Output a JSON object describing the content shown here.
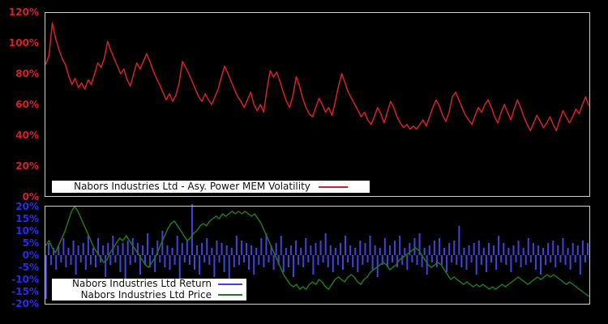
{
  "figure": {
    "background": "#000000",
    "frame_color": "#d0d0d0"
  },
  "chart_data": [
    {
      "type": "line",
      "panel": "top",
      "title": "Nabors Industries Ltd - Asy. Power MEM Volatility",
      "xlabel": "",
      "ylabel": "",
      "ylim": [
        0,
        120
      ],
      "yticks": [
        0,
        20,
        40,
        60,
        80,
        100,
        120
      ],
      "ytick_suffix": "%",
      "xticks_visible": false,
      "grid": false,
      "axis_label_color": "#d62128",
      "legend_position": "bottom-center-inside",
      "series": [
        {
          "name": "Nabors Industries Ltd - Asy. Power MEM Volatility",
          "type": "line",
          "color": "#d62128",
          "values": [
            86,
            92,
            113,
            103,
            96,
            90,
            86,
            79,
            73,
            77,
            71,
            74,
            70,
            76,
            73,
            80,
            87,
            84,
            90,
            101,
            95,
            90,
            85,
            80,
            83,
            76,
            72,
            80,
            87,
            83,
            88,
            93,
            88,
            82,
            77,
            73,
            68,
            63,
            67,
            62,
            66,
            74,
            88,
            84,
            80,
            75,
            70,
            65,
            62,
            67,
            63,
            60,
            65,
            70,
            78,
            85,
            80,
            75,
            70,
            65,
            62,
            58,
            63,
            68,
            60,
            56,
            60,
            55,
            70,
            82,
            78,
            81,
            75,
            68,
            62,
            58,
            66,
            78,
            72,
            64,
            58,
            54,
            52,
            58,
            64,
            60,
            55,
            58,
            53,
            62,
            72,
            80,
            74,
            68,
            64,
            60,
            56,
            52,
            55,
            50,
            47,
            52,
            58,
            54,
            48,
            55,
            62,
            58,
            52,
            48,
            45,
            47,
            44,
            46,
            44,
            47,
            50,
            46,
            52,
            58,
            63,
            59,
            53,
            49,
            55,
            65,
            68,
            63,
            58,
            53,
            50,
            47,
            53,
            58,
            55,
            60,
            63,
            58,
            52,
            48,
            55,
            60,
            55,
            50,
            57,
            63,
            58,
            52,
            47,
            43,
            48,
            53,
            49,
            45,
            48,
            52,
            47,
            43,
            50,
            56,
            52,
            48,
            52,
            57,
            54,
            60,
            65,
            59
          ]
        }
      ]
    },
    {
      "type": "mixed",
      "panel": "bottom",
      "title": "",
      "xlabel": "",
      "ylabel": "",
      "ylim": [
        -20.3,
        20.3
      ],
      "yticks": [
        -20,
        -15,
        -10,
        -5,
        0,
        5,
        10,
        15,
        20
      ],
      "ytick_suffix": "%",
      "xticks_visible": false,
      "grid": false,
      "axis_label_color": "#2a2aee",
      "legend_position": "bottom-left-inside",
      "series": [
        {
          "name": "Nabors Industries Ltd Return",
          "type": "bar",
          "color": "#4242dd",
          "values": [
            -18,
            5,
            -4,
            3,
            -6,
            4,
            -3,
            7,
            -5,
            3,
            -4,
            6,
            -8,
            4,
            -3,
            5,
            -6,
            8,
            -4,
            3,
            -5,
            7,
            -3,
            4,
            -9,
            5,
            -4,
            8,
            -3,
            4,
            -7,
            5,
            -10,
            6,
            -4,
            7,
            -3,
            5,
            -8,
            4,
            -4,
            9,
            -5,
            3,
            -7,
            6,
            -3,
            10,
            -5,
            4,
            -6,
            3,
            -4,
            8,
            -12,
            5,
            -3,
            6,
            -4,
            21,
            -6,
            4,
            -8,
            5,
            -3,
            7,
            -4,
            3,
            -9,
            6,
            -3,
            5,
            -7,
            4,
            -10,
            3,
            -5,
            8,
            -4,
            6,
            -3,
            5,
            -6,
            4,
            -8,
            3,
            -4,
            7,
            -5,
            9,
            -3,
            4,
            -6,
            5,
            -4,
            8,
            -7,
            3,
            -5,
            4,
            -9,
            6,
            -4,
            3,
            -5,
            7,
            -3,
            4,
            -8,
            5,
            -4,
            6,
            -3,
            9,
            -5,
            4,
            -7,
            3,
            -4,
            5,
            -6,
            8,
            -3,
            4,
            -5,
            3,
            -7,
            6,
            -4,
            5,
            -3,
            8,
            -6,
            4,
            -9,
            3,
            -4,
            7,
            -5,
            4,
            -3,
            6,
            -5,
            8,
            -4,
            3,
            -6,
            5,
            -3,
            7,
            -4,
            9,
            -5,
            3,
            -8,
            4,
            -3,
            6,
            -5,
            7,
            -4,
            3,
            -7,
            5,
            -3,
            6,
            -4,
            12,
            -5,
            3,
            -6,
            4,
            -3,
            5,
            -8,
            6,
            -4,
            3,
            -7,
            5,
            -3,
            4,
            -6,
            8,
            -3,
            5,
            -4,
            3,
            -7,
            4,
            -3,
            6,
            -5,
            3,
            -4,
            7,
            -3,
            5,
            -6,
            4,
            -8,
            3,
            -4,
            5,
            -3,
            6,
            -5,
            4,
            -3,
            7,
            -4,
            3,
            -6,
            5,
            -3,
            4,
            -8,
            6,
            -3,
            5
          ]
        },
        {
          "name": "Nabors Industries Ltd Price",
          "type": "line",
          "color": "#1e7a1e",
          "values": [
            4,
            6,
            3,
            1,
            4,
            7,
            10,
            14,
            18,
            20,
            18,
            15,
            12,
            9,
            6,
            3,
            1,
            -1,
            -3,
            -2,
            1,
            3,
            5,
            7,
            6,
            8,
            6,
            4,
            2,
            0,
            -2,
            -4,
            -5,
            -3,
            -1,
            2,
            5,
            8,
            11,
            13,
            14,
            12,
            10,
            8,
            6,
            7,
            9,
            10,
            12,
            13,
            12,
            14,
            15,
            16,
            15,
            17,
            16,
            17,
            18,
            17,
            18,
            17,
            18,
            17,
            16,
            17,
            15,
            13,
            10,
            7,
            4,
            1,
            -2,
            -5,
            -8,
            -10,
            -12,
            -13,
            -12,
            -14,
            -13,
            -14,
            -12,
            -11,
            -12,
            -10,
            -11,
            -13,
            -14,
            -12,
            -10,
            -9,
            -10,
            -11,
            -9,
            -8,
            -9,
            -11,
            -12,
            -10,
            -9,
            -7,
            -6,
            -5,
            -4,
            -3,
            -4,
            -6,
            -5,
            -4,
            -2,
            -1,
            0,
            1,
            2,
            3,
            2,
            0,
            -2,
            -4,
            -5,
            -4,
            -3,
            -4,
            -6,
            -8,
            -10,
            -9,
            -10,
            -11,
            -12,
            -11,
            -12,
            -13,
            -12,
            -13,
            -12,
            -13,
            -14,
            -13,
            -14,
            -13,
            -12,
            -13,
            -12,
            -11,
            -10,
            -9,
            -10,
            -11,
            -12,
            -11,
            -10,
            -9,
            -10,
            -9,
            -8,
            -9,
            -8,
            -9,
            -10,
            -11,
            -12,
            -11,
            -12,
            -13,
            -14,
            -15,
            -16,
            -17
          ]
        }
      ]
    }
  ]
}
